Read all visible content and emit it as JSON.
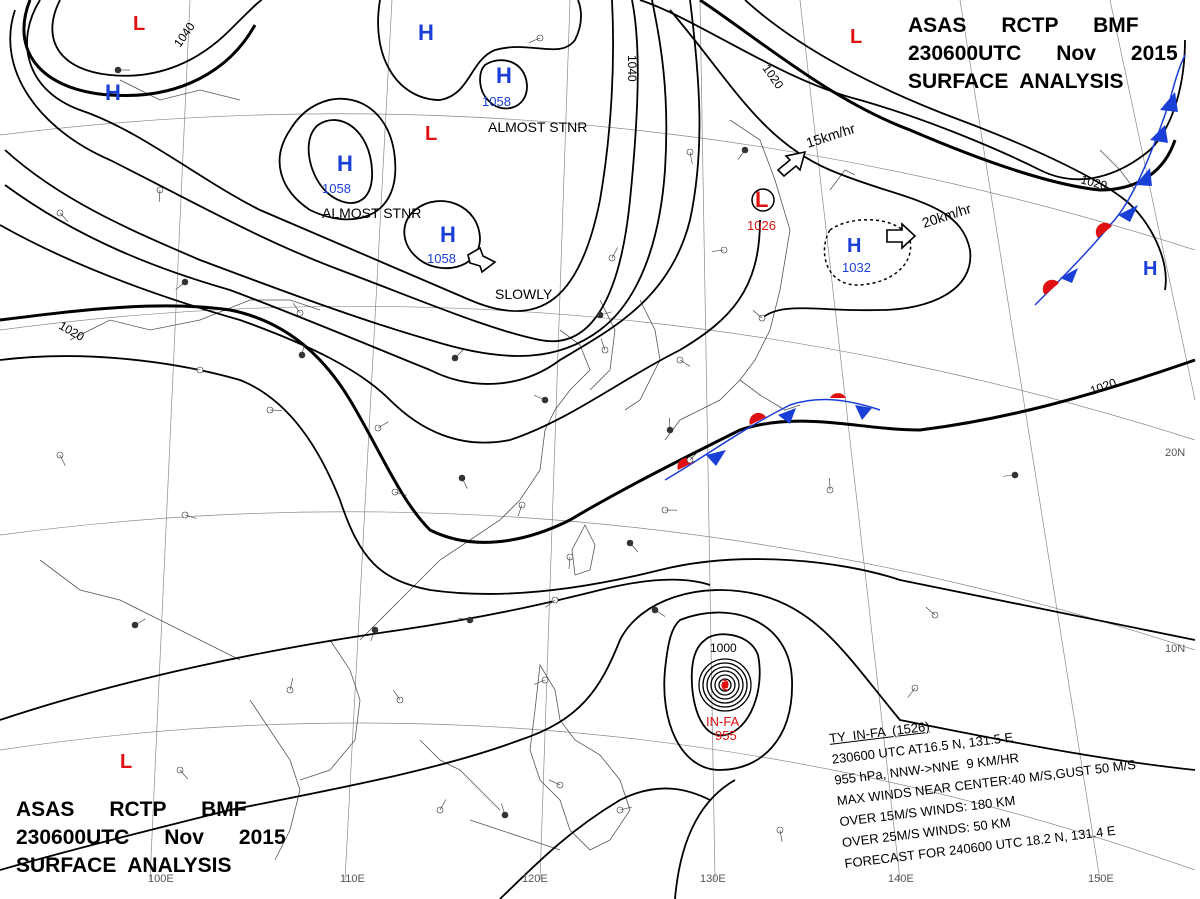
{
  "header": {
    "line1": "ASAS      RCTP      BMF",
    "line2": "230600UTC      Nov      2015",
    "line3": "SURFACE  ANALYSIS"
  },
  "typhoon": {
    "name": "IN-FA",
    "pressure": "955",
    "center_pressure_label": "1000",
    "lines": [
      "TY  IN-FA  (1526)",
      "230600 UTC AT16.5 N, 131.5 E",
      "955 hPa, NNW->NNE  9 KM/HR",
      "MAX WINDS NEAR CENTER:40 M/S,GUST 50 M/S",
      "OVER 15M/S WINDS: 180 KM",
      "OVER 25M/S WINDS: 50 KM",
      "FORECAST FOR 240600 UTC 18.2 N, 131.4 E"
    ]
  },
  "isobar_labels": [
    "1040",
    "1040",
    "1020",
    "1020",
    "1020",
    "1020"
  ],
  "pressure_centers": [
    {
      "type": "H",
      "value": "1058"
    },
    {
      "type": "H",
      "value": "1058"
    },
    {
      "type": "H",
      "value": "1058"
    },
    {
      "type": "H",
      "value": "1032"
    },
    {
      "type": "L",
      "value": "1026"
    },
    {
      "type": "H",
      "value": ""
    },
    {
      "type": "H",
      "value": ""
    },
    {
      "type": "H",
      "value": ""
    },
    {
      "type": "L",
      "value": ""
    },
    {
      "type": "L",
      "value": ""
    },
    {
      "type": "L",
      "value": ""
    },
    {
      "type": "L",
      "value": ""
    }
  ],
  "annotations": {
    "almost_stnr_1": "ALMOST STNR",
    "almost_stnr_2": "ALMOST STNR",
    "slowly": "SLOWLY",
    "speed_1": "15km/hr",
    "speed_2": "20km/hr"
  },
  "graticule_labels": {
    "lon": [
      "100E",
      "110E",
      "120E",
      "130E",
      "140E",
      "150E"
    ],
    "lat": [
      "20N",
      "10N"
    ]
  },
  "colors": {
    "high": "#1a3fd6",
    "low": "#e01010",
    "front_cold": "#1a3fd6",
    "front_warm": "#e01010",
    "isobar": "#000000",
    "coast": "#555555"
  }
}
